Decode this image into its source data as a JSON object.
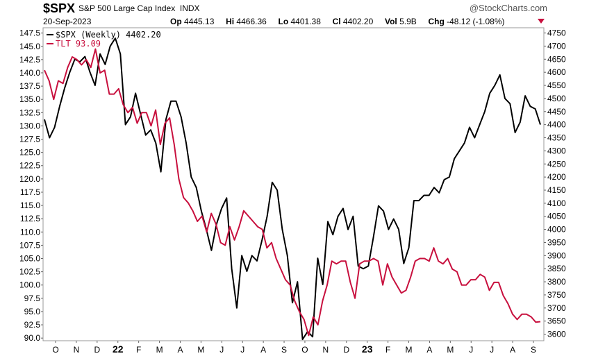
{
  "header": {
    "symbol": "$SPX",
    "name": "S&P 500 Large Cap Index",
    "exchange": "INDX",
    "brand": "@StockCharts.com",
    "date": "20-Sep-2023",
    "op_label": "Op",
    "op_value": "4445.13",
    "hi_label": "Hi",
    "hi_value": "4466.36",
    "lo_label": "Lo",
    "lo_value": "4401.38",
    "cl_label": "Cl",
    "cl_value": "4402.20",
    "vol_label": "Vol",
    "vol_value": "5.9B",
    "chg_label": "Chg",
    "chg_value": "-48.12 (-1.08%)"
  },
  "chart_data": {
    "type": "line",
    "x_labels": [
      "O",
      "N",
      "D",
      "22",
      "F",
      "M",
      "A",
      "M",
      "J",
      "J",
      "A",
      "S",
      "O",
      "N",
      "D",
      "23",
      "F",
      "M",
      "A",
      "M",
      "J",
      "J",
      "A",
      "S"
    ],
    "bold_x_labels": [
      "22",
      "23"
    ],
    "left_axis": {
      "ylim": [
        89.5,
        148.5
      ],
      "ticks": [
        "147.5",
        "145.0",
        "142.5",
        "140.0",
        "137.5",
        "135.0",
        "132.5",
        "130.0",
        "127.5",
        "125.0",
        "122.5",
        "120.0",
        "117.5",
        "115.0",
        "112.5",
        "110.0",
        "107.5",
        "105.0",
        "102.5",
        "100.0",
        "97.5",
        "95.0",
        "92.5",
        "90.0"
      ]
    },
    "right_axis": {
      "ylim": [
        3575,
        4770
      ],
      "ticks": [
        "4750",
        "4700",
        "4650",
        "4600",
        "4550",
        "4500",
        "4450",
        "4400",
        "4350",
        "4300",
        "4250",
        "4200",
        "4150",
        "4100",
        "4050",
        "4000",
        "3950",
        "3900",
        "3850",
        "3800",
        "3750",
        "3700",
        "3650",
        "3600"
      ]
    },
    "legend_placement": "top-left",
    "series": [
      {
        "name": "$SPX (Weekly) 4402.20",
        "axis": "right",
        "color": "#000000",
        "values": [
          4420,
          4350,
          4390,
          4470,
          4540,
          4600,
          4650,
          4640,
          4660,
          4600,
          4550,
          4670,
          4630,
          4700,
          4730,
          4670,
          4400,
          4430,
          4520,
          4440,
          4360,
          4380,
          4330,
          4220,
          4420,
          4490,
          4490,
          4430,
          4330,
          4200,
          4160,
          4070,
          4000,
          3920,
          4020,
          4080,
          4120,
          3850,
          3700,
          3900,
          3840,
          3900,
          3880,
          3960,
          4050,
          4180,
          4150,
          4000,
          3900,
          3720,
          3800,
          3580,
          3610,
          3590,
          3890,
          3790,
          4030,
          3980,
          4050,
          4080,
          4000,
          4050,
          3860,
          3850,
          3860,
          3970,
          4090,
          4070,
          4000,
          4040,
          4000,
          3870,
          3930,
          4110,
          4110,
          4130,
          4130,
          4160,
          4140,
          4190,
          4200,
          4270,
          4300,
          4330,
          4390,
          4350,
          4400,
          4450,
          4520,
          4550,
          4590,
          4500,
          4480,
          4370,
          4410,
          4510,
          4470,
          4460,
          4400
        ]
      },
      {
        "name": "TLT 93.09",
        "axis": "left",
        "color": "#c8103e",
        "values": [
          140.5,
          138.5,
          135.0,
          138.5,
          138.0,
          141.0,
          143.0,
          142.5,
          141.5,
          142.5,
          141.0,
          144.5,
          140.0,
          140.5,
          136.0,
          136.0,
          137.0,
          134.0,
          132.5,
          133.5,
          130.5,
          132.5,
          132.5,
          130.0,
          133.0,
          126.5,
          130.5,
          131.5,
          126.5,
          120.0,
          116.5,
          115.5,
          114.0,
          112.0,
          113.0,
          110.0,
          113.5,
          111.5,
          108.0,
          107.5,
          111.0,
          108.5,
          111.0,
          114.0,
          113.0,
          112.0,
          111.0,
          110.5,
          107.0,
          108.0,
          105.0,
          103.0,
          101.0,
          100.0,
          97.0,
          95.0,
          93.5,
          90.5,
          94.0,
          92.5,
          97.0,
          100.0,
          104.5,
          104.0,
          104.5,
          104.5,
          100.5,
          97.5,
          104.0,
          104.5,
          104.5,
          105.0,
          104.5,
          100.0,
          104.0,
          101.5,
          100.0,
          98.5,
          99.0,
          101.5,
          104.5,
          105.0,
          105.0,
          104.5,
          107.0,
          104.5,
          104.0,
          105.0,
          103.0,
          102.5,
          100.0,
          100.0,
          101.0,
          101.0,
          102.0,
          101.5,
          99.0,
          100.5,
          100.5,
          98.0,
          96.5,
          94.5,
          93.5,
          94.5,
          94.5,
          94.0,
          93.0,
          93.1
        ]
      }
    ]
  }
}
